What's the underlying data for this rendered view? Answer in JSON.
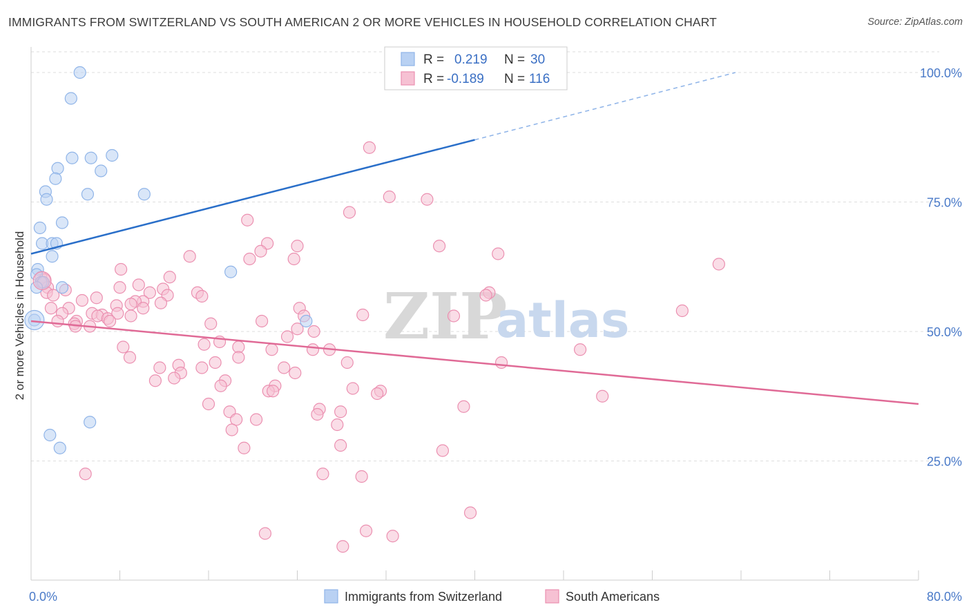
{
  "title": "IMMIGRANTS FROM SWITZERLAND VS SOUTH AMERICAN 2 OR MORE VEHICLES IN HOUSEHOLD CORRELATION CHART",
  "source": "Source: ZipAtlas.com",
  "watermark": {
    "zip": "ZIP",
    "atlas": "atlas"
  },
  "colors": {
    "blue": "#8fb4e8",
    "blue_fill": "#b9d1f3",
    "blue_line": "#2a6fc9",
    "pink": "#eb8fb0",
    "pink_fill": "#f6c1d3",
    "pink_line": "#e06a96",
    "axis_text": "#4a7ac8",
    "grid": "#dddddd"
  },
  "legend": {
    "rows": [
      {
        "r_label": "R =",
        "r_value": "0.219",
        "n_label": "N =",
        "n_value": "30"
      },
      {
        "r_label": "R =",
        "r_value": "-0.189",
        "n_label": "N =",
        "n_value": "116"
      }
    ]
  },
  "chart_data": {
    "type": "scatter",
    "title": "IMMIGRANTS FROM SWITZERLAND VS SOUTH AMERICAN 2 OR MORE VEHICLES IN HOUSEHOLD CORRELATION CHART",
    "xlabel": "",
    "ylabel": "2 or more Vehicles in Household",
    "xlim": [
      0,
      80
    ],
    "ylim": [
      2,
      104
    ],
    "x_tick_labels": [
      "0.0%",
      "80.0%"
    ],
    "y_ticks": [
      25,
      50,
      75,
      100
    ],
    "y_tick_labels": [
      "25.0%",
      "50.0%",
      "75.0%",
      "100.0%"
    ],
    "grid": true,
    "legend_position": "bottom",
    "series": [
      {
        "name": "Immigrants from Switzerland",
        "color": "#8fb4e8",
        "r": 0.219,
        "n": 30,
        "trend": {
          "x0": 0,
          "y0": 65,
          "x1": 40,
          "y1": 87,
          "dash_x1": 63.5,
          "dash_y1": 100
        },
        "points": [
          [
            4.4,
            100
          ],
          [
            3.6,
            95
          ],
          [
            3.7,
            83.5
          ],
          [
            5.4,
            83.5
          ],
          [
            7.3,
            84
          ],
          [
            2.4,
            81.5
          ],
          [
            6.3,
            81
          ],
          [
            2.2,
            79.5
          ],
          [
            1.3,
            77
          ],
          [
            5.1,
            76.5
          ],
          [
            10.2,
            76.5
          ],
          [
            1.4,
            75.5
          ],
          [
            2.8,
            71
          ],
          [
            0.8,
            70
          ],
          [
            1.0,
            67
          ],
          [
            1.9,
            67
          ],
          [
            2.3,
            67
          ],
          [
            1.9,
            64.5
          ],
          [
            18.0,
            61.5
          ],
          [
            0.6,
            62
          ],
          [
            0.5,
            61
          ],
          [
            0.9,
            59.5
          ],
          [
            1.1,
            59.5
          ],
          [
            2.8,
            58.5
          ],
          [
            0.5,
            58.5
          ],
          [
            0.3,
            52.2
          ],
          [
            24.8,
            52
          ],
          [
            5.3,
            32.5
          ],
          [
            1.7,
            30
          ],
          [
            2.6,
            27.5
          ]
        ]
      },
      {
        "name": "South Americans",
        "color": "#eb8fb0",
        "r": -0.189,
        "n": 116,
        "trend": {
          "x0": 0,
          "y0": 52,
          "x1": 80,
          "y1": 36
        },
        "points": [
          [
            30.5,
            85.5
          ],
          [
            32.3,
            76
          ],
          [
            35.7,
            75.5
          ],
          [
            28.7,
            73
          ],
          [
            19.5,
            71.5
          ],
          [
            21.3,
            67
          ],
          [
            24.0,
            66.5
          ],
          [
            36.8,
            66.5
          ],
          [
            20.7,
            65.5
          ],
          [
            42.1,
            65
          ],
          [
            14.3,
            64.5
          ],
          [
            19.7,
            64
          ],
          [
            23.7,
            64
          ],
          [
            62.0,
            63
          ],
          [
            8.1,
            62
          ],
          [
            12.5,
            60.5
          ],
          [
            0.9,
            60.5
          ],
          [
            1.2,
            60
          ],
          [
            1.0,
            59.5
          ],
          [
            9.7,
            59
          ],
          [
            8.0,
            58.5
          ],
          [
            1.5,
            58.5
          ],
          [
            3.1,
            58
          ],
          [
            11.9,
            58.2
          ],
          [
            1.4,
            57.5
          ],
          [
            15.0,
            57.5
          ],
          [
            10.7,
            57.5
          ],
          [
            12.3,
            57
          ],
          [
            2.0,
            57
          ],
          [
            41.3,
            57.5
          ],
          [
            41.0,
            57
          ],
          [
            15.4,
            56.8
          ],
          [
            5.9,
            56.5
          ],
          [
            4.6,
            56
          ],
          [
            10.1,
            55.8
          ],
          [
            9.4,
            55.8
          ],
          [
            11.7,
            55.5
          ],
          [
            9.0,
            55.3
          ],
          [
            7.7,
            55
          ],
          [
            24.2,
            54.5
          ],
          [
            10.1,
            54.5
          ],
          [
            1.8,
            54.5
          ],
          [
            3.4,
            54.5
          ],
          [
            58.7,
            54
          ],
          [
            5.5,
            53.5
          ],
          [
            7.8,
            53.5
          ],
          [
            2.8,
            53.5
          ],
          [
            6.4,
            53.2
          ],
          [
            6.0,
            53
          ],
          [
            9.0,
            53
          ],
          [
            24.6,
            53
          ],
          [
            38.1,
            53
          ],
          [
            29.9,
            53.2
          ],
          [
            6.9,
            52.5
          ],
          [
            20.8,
            52
          ],
          [
            7.1,
            52
          ],
          [
            2.4,
            52
          ],
          [
            4.1,
            52
          ],
          [
            3.9,
            51.5
          ],
          [
            16.2,
            51.5
          ],
          [
            4.0,
            51
          ],
          [
            5.3,
            51
          ],
          [
            24.0,
            50.5
          ],
          [
            25.5,
            50
          ],
          [
            23.1,
            49
          ],
          [
            17.0,
            48
          ],
          [
            15.6,
            47.5
          ],
          [
            8.3,
            47
          ],
          [
            18.7,
            47
          ],
          [
            25.4,
            46.5
          ],
          [
            21.7,
            46.5
          ],
          [
            26.9,
            46.5
          ],
          [
            49.5,
            46.5
          ],
          [
            18.7,
            45
          ],
          [
            8.9,
            45
          ],
          [
            42.4,
            44
          ],
          [
            16.6,
            44
          ],
          [
            28.5,
            44
          ],
          [
            13.3,
            43.5
          ],
          [
            15.4,
            43
          ],
          [
            22.8,
            43
          ],
          [
            11.6,
            43
          ],
          [
            23.8,
            42
          ],
          [
            13.5,
            42
          ],
          [
            12.9,
            41
          ],
          [
            11.2,
            40.5
          ],
          [
            17.5,
            40.5
          ],
          [
            17.1,
            39.5
          ],
          [
            22.0,
            39.5
          ],
          [
            29.0,
            39
          ],
          [
            21.4,
            38.5
          ],
          [
            21.8,
            38.5
          ],
          [
            31.5,
            38.5
          ],
          [
            31.2,
            38
          ],
          [
            51.5,
            37.5
          ],
          [
            16.0,
            36
          ],
          [
            39.0,
            35.5
          ],
          [
            26.0,
            35
          ],
          [
            27.9,
            34.5
          ],
          [
            17.9,
            34.5
          ],
          [
            25.8,
            34
          ],
          [
            20.3,
            33
          ],
          [
            18.5,
            33
          ],
          [
            27.6,
            32
          ],
          [
            18.1,
            31
          ],
          [
            27.9,
            28
          ],
          [
            19.2,
            27.5
          ],
          [
            37.1,
            27
          ],
          [
            4.9,
            22.5
          ],
          [
            26.3,
            22.5
          ],
          [
            29.8,
            22
          ],
          [
            39.6,
            15
          ],
          [
            30.2,
            11.5
          ],
          [
            21.1,
            11
          ],
          [
            32.6,
            10.5
          ],
          [
            28.1,
            8.5
          ]
        ]
      }
    ]
  },
  "bottom_legend": [
    {
      "label": "Immigrants from Switzerland"
    },
    {
      "label": "South Americans"
    }
  ]
}
